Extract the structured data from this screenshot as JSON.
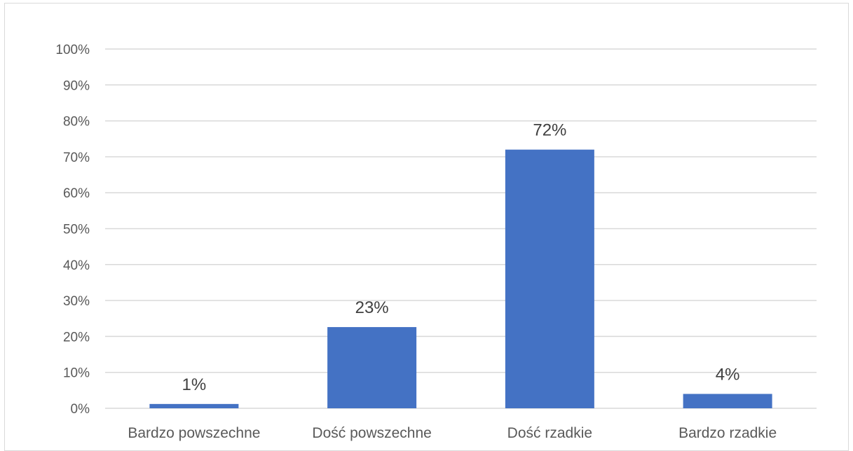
{
  "chart_data": {
    "type": "bar",
    "categories": [
      "Bardzo powszechne",
      "Dość powszechne",
      "Dość rzadkie",
      "Bardzo rzadkie"
    ],
    "values": [
      1.2,
      22.6,
      72,
      4
    ],
    "data_labels": [
      "1%",
      "23%",
      "72%",
      "4%"
    ],
    "ylim": [
      0,
      100
    ],
    "yticks": [
      0,
      10,
      20,
      30,
      40,
      50,
      60,
      70,
      80,
      90,
      100
    ],
    "ytick_labels": [
      "0%",
      "10%",
      "20%",
      "30%",
      "40%",
      "50%",
      "60%",
      "70%",
      "80%",
      "90%",
      "100%"
    ],
    "title": "",
    "xlabel": "",
    "ylabel": "",
    "grid": true,
    "legend": "none",
    "colors": {
      "bar": "#4472C4",
      "grid": "#d9d9d9",
      "text": "#595959"
    }
  }
}
